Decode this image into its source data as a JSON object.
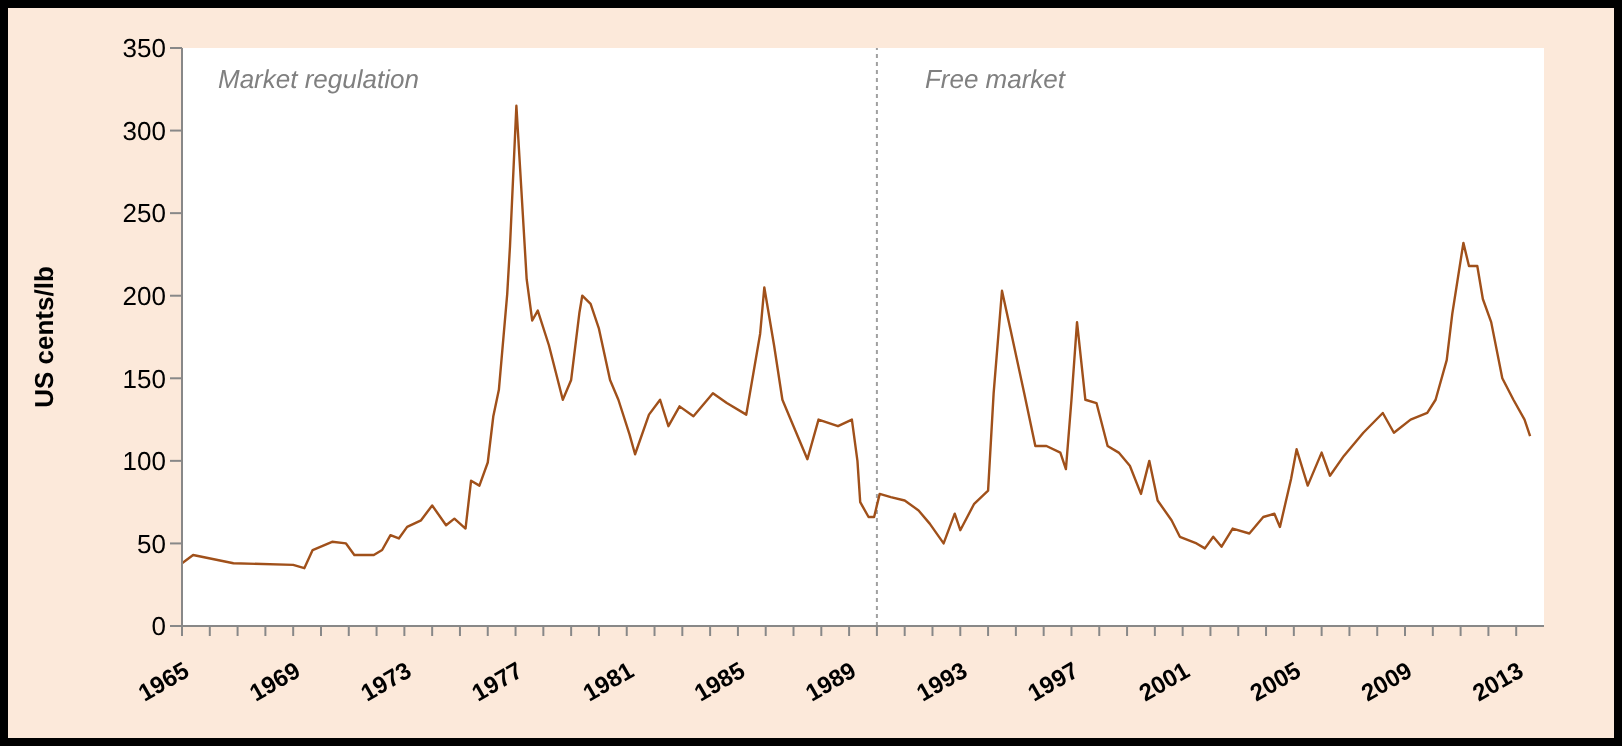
{
  "chart_data": {
    "type": "line",
    "ylabel": "US cents/lb",
    "annotations": [
      "Market regulation",
      "Free market"
    ],
    "x": [
      1965,
      1965.4,
      1966.85,
      1969,
      1969.4,
      1969.7,
      1970.4,
      1970.9,
      1971.2,
      1971.9,
      1972.2,
      1972.5,
      1972.8,
      1973.1,
      1973.6,
      1974,
      1974.5,
      1974.8,
      1975.2,
      1975.4,
      1975.7,
      1976,
      1976.2,
      1976.4,
      1976.7,
      1976.8,
      1977.03,
      1977.4,
      1977.6,
      1977.8,
      1978.2,
      1978.7,
      1979,
      1979.3,
      1979.4,
      1979.7,
      1980,
      1980.4,
      1980.7,
      1981.1,
      1981.3,
      1981.8,
      1982.2,
      1982.5,
      1982.9,
      1983.4,
      1984.1,
      1984.6,
      1985.3,
      1985.8,
      1985.95,
      1986.3,
      1986.6,
      1987,
      1987.5,
      1987.9,
      1988.6,
      1989.1,
      1989.3,
      1989.4,
      1989.7,
      1989.9,
      1990.1,
      1990.5,
      1991,
      1991.5,
      1991.9,
      1992.4,
      1992.8,
      1993,
      1993.5,
      1994,
      1994.2,
      1994.5,
      1994.8,
      1995.3,
      1995.7,
      1996.1,
      1996.6,
      1996.8,
      1997,
      1997.2,
      1997.5,
      1997.9,
      1998.3,
      1998.7,
      1999.1,
      1999.5,
      1999.8,
      2000.1,
      2000.6,
      2000.9,
      2001.5,
      2001.8,
      2002.1,
      2002.4,
      2002.8,
      2003.4,
      2003.9,
      2004.3,
      2004.5,
      2004.9,
      2005.1,
      2005.5,
      2006,
      2006.3,
      2006.8,
      2007.5,
      2008.2,
      2008.6,
      2009.2,
      2009.8,
      2010.1,
      2010.5,
      2010.7,
      2011.1,
      2011.3,
      2011.6,
      2011.8,
      2012.1,
      2012.5,
      2012.9,
      2013.3,
      2013.5
    ],
    "series": [
      {
        "color": "#a0501a",
        "values": [
          38,
          43,
          38,
          37,
          35,
          46,
          51,
          50,
          43,
          43,
          46,
          55,
          53,
          60,
          64,
          73,
          61,
          65,
          59,
          88,
          85,
          99,
          127,
          143,
          201,
          230,
          315,
          210,
          185,
          191,
          170,
          137,
          149,
          190,
          200,
          195,
          180,
          149,
          137,
          116,
          104,
          128,
          137,
          121,
          133,
          127,
          141,
          135,
          128,
          177,
          205,
          170,
          137,
          121,
          101,
          125,
          121,
          125,
          100,
          75,
          66,
          66,
          80,
          78,
          76,
          70,
          62,
          50,
          68,
          58,
          74,
          82,
          141,
          203,
          180,
          141,
          109,
          109,
          105,
          95,
          137,
          184,
          137,
          135,
          109,
          105,
          97,
          80,
          100,
          76,
          64,
          54,
          50,
          47,
          54,
          48,
          59,
          56,
          66,
          68,
          60,
          89,
          107,
          85,
          105,
          91,
          103,
          117,
          129,
          117,
          125,
          129,
          137,
          161,
          189,
          232,
          218,
          218,
          198,
          184,
          150,
          137,
          125,
          115
        ]
      }
    ],
    "xlim": [
      1965,
      2014
    ],
    "xticks": [
      1965,
      {
        "value": 1966,
        "label": null
      },
      {
        "value": 1967,
        "label": null
      },
      {
        "value": 1968,
        "label": null
      },
      1969,
      {
        "value": 1970,
        "label": null
      },
      {
        "value": 1971,
        "label": null
      },
      {
        "value": 1972,
        "label": null
      },
      1973,
      {
        "value": 1974,
        "label": null
      },
      {
        "value": 1975,
        "label": null
      },
      {
        "value": 1976,
        "label": null
      },
      1977,
      {
        "value": 1978,
        "label": null
      },
      {
        "value": 1979,
        "label": null
      },
      {
        "value": 1980,
        "label": null
      },
      1981,
      {
        "value": 1982,
        "label": null
      },
      {
        "value": 1983,
        "label": null
      },
      {
        "value": 1984,
        "label": null
      },
      1985,
      {
        "value": 1986,
        "label": null
      },
      {
        "value": 1987,
        "label": null
      },
      {
        "value": 1988,
        "label": null
      },
      1989,
      {
        "value": 1990,
        "label": null
      },
      {
        "value": 1991,
        "label": null
      },
      {
        "value": 1992,
        "label": null
      },
      1993,
      {
        "value": 1994,
        "label": null
      },
      {
        "value": 1995,
        "label": null
      },
      {
        "value": 1996,
        "label": null
      },
      1997,
      {
        "value": 1998,
        "label": null
      },
      {
        "value": 1999,
        "label": null
      },
      {
        "value": 2000,
        "label": null
      },
      2001,
      {
        "value": 2002,
        "label": null
      },
      {
        "value": 2003,
        "label": null
      },
      {
        "value": 2004,
        "label": null
      },
      2005,
      {
        "value": 2006,
        "label": null
      },
      {
        "value": 2007,
        "label": null
      },
      {
        "value": 2008,
        "label": null
      },
      2009,
      {
        "value": 2010,
        "label": null
      },
      {
        "value": 2011,
        "label": null
      },
      {
        "value": 2012,
        "label": null
      },
      2013
    ],
    "ylim": [
      0,
      350
    ],
    "yticks": [
      0,
      50,
      100,
      150,
      200,
      250,
      300,
      350
    ],
    "ref_lines": [
      {
        "axis": "x",
        "value": 1990,
        "color": "#a0a0a0",
        "line_style": "dotted"
      }
    ],
    "grid": false,
    "legend": false,
    "marker": "none",
    "line_style": "solid"
  }
}
